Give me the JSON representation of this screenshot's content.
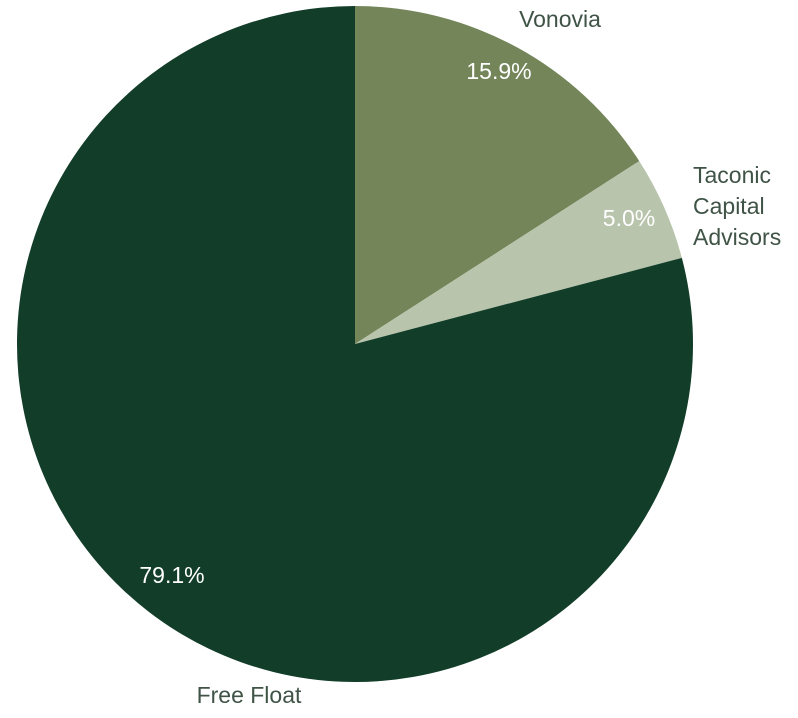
{
  "chart_data": {
    "type": "pie",
    "title": "",
    "slices": [
      {
        "label": "Vonovia",
        "label_lines": [
          "Vonovia"
        ],
        "value": 15.9,
        "value_label": "15.9%",
        "color": "#738559"
      },
      {
        "label": "Taconic Capital Advisors",
        "label_lines": [
          "Taconic",
          "Capital",
          "Advisors"
        ],
        "value": 5.0,
        "value_label": "5.0%",
        "color": "#b8c4ab"
      },
      {
        "label": "Free Float",
        "label_lines": [
          "Free Float"
        ],
        "value": 79.1,
        "value_label": "79.1%",
        "color": "#113d29"
      }
    ],
    "legend": "none",
    "label_text_color": "#3f5346",
    "value_label_color": "#ffffff"
  }
}
